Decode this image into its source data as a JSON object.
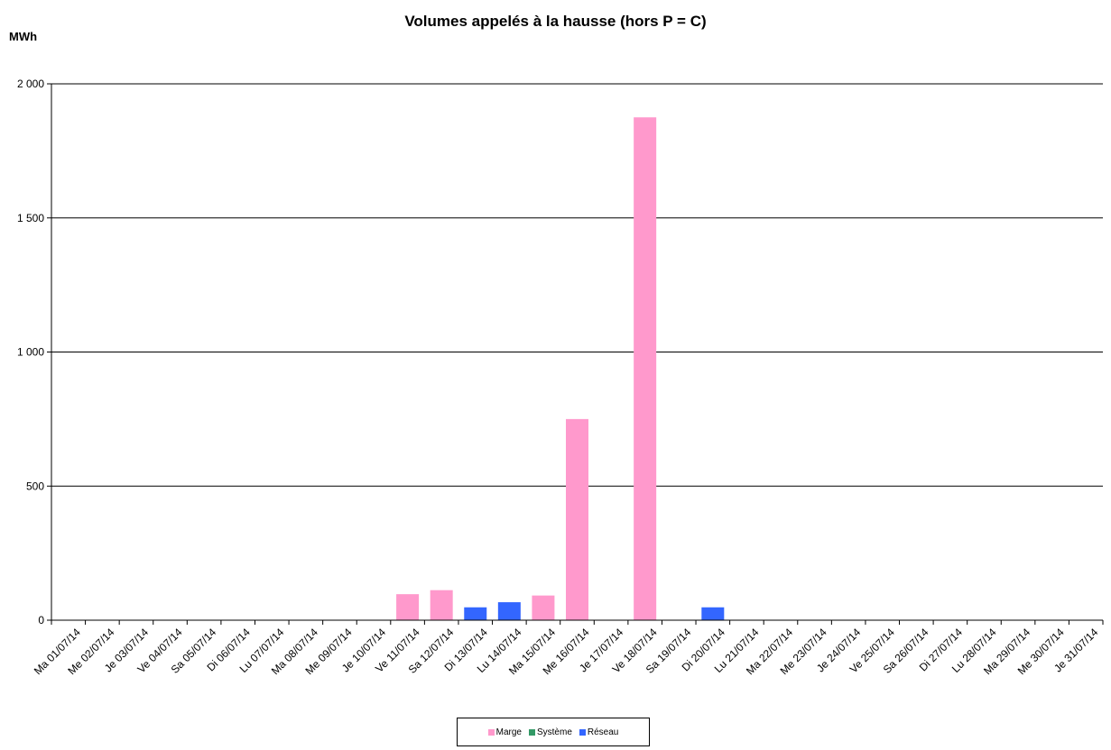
{
  "chart_data": {
    "type": "bar",
    "title": "Volumes appelés à la hausse (hors P = C)",
    "ylabel": "MWh",
    "xlabel": "",
    "ylim": [
      0,
      2000
    ],
    "yticks": [
      "0",
      "500",
      "1 000",
      "1 500",
      "2 000"
    ],
    "ytick_values": [
      0,
      500,
      1000,
      1500,
      2000
    ],
    "grid": true,
    "legend_position": "bottom",
    "categories": [
      "Ma 01/07/14",
      "Me 02/07/14",
      "Je 03/07/14",
      "Ve 04/07/14",
      "Sa 05/07/14",
      "Di 06/07/14",
      "Lu 07/07/14",
      "Ma 08/07/14",
      "Me 09/07/14",
      "Je 10/07/14",
      "Ve 11/07/14",
      "Sa 12/07/14",
      "Di 13/07/14",
      "Lu 14/07/14",
      "Ma 15/07/14",
      "Me 16/07/14",
      "Je 17/07/14",
      "Ve 18/07/14",
      "Sa 19/07/14",
      "Di 20/07/14",
      "Lu 21/07/14",
      "Ma 22/07/14",
      "Me 23/07/14",
      "Je 24/07/14",
      "Ve 25/07/14",
      "Sa 26/07/14",
      "Di 27/07/14",
      "Lu 28/07/14",
      "Ma 29/07/14",
      "Me 30/07/14",
      "Je 31/07/14"
    ],
    "series": [
      {
        "name": "Marge",
        "color": "#ff99cc",
        "values": [
          0,
          0,
          0,
          0,
          0,
          0,
          0,
          0,
          0,
          0,
          97,
          112,
          0,
          0,
          92,
          750,
          0,
          1875,
          0,
          0,
          0,
          0,
          0,
          0,
          0,
          0,
          0,
          0,
          0,
          0,
          0
        ]
      },
      {
        "name": "Système",
        "color": "#339966",
        "values": [
          0,
          0,
          0,
          0,
          0,
          0,
          0,
          0,
          0,
          0,
          0,
          0,
          0,
          0,
          0,
          0,
          0,
          0,
          0,
          0,
          0,
          0,
          0,
          0,
          0,
          0,
          0,
          0,
          0,
          0,
          0
        ]
      },
      {
        "name": "Réseau",
        "color": "#3366ff",
        "values": [
          0,
          0,
          0,
          0,
          0,
          0,
          0,
          0,
          0,
          0,
          0,
          0,
          48,
          67,
          0,
          0,
          0,
          0,
          0,
          48,
          0,
          0,
          0,
          0,
          0,
          0,
          0,
          0,
          0,
          0,
          0
        ]
      }
    ]
  }
}
